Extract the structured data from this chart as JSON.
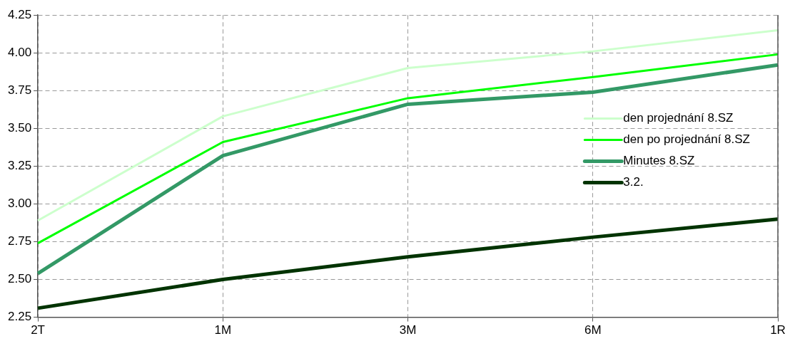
{
  "chart_data": {
    "type": "line",
    "categories": [
      "2T",
      "1M",
      "3M",
      "6M",
      "1R"
    ],
    "series": [
      {
        "name": "den projednání 8.SZ",
        "color": "#ccffcc",
        "values": [
          2.89,
          3.58,
          3.9,
          4.01,
          4.15
        ]
      },
      {
        "name": "den po projednání 8.SZ",
        "color": "#00ff00",
        "values": [
          2.74,
          3.41,
          3.7,
          3.84,
          3.99
        ]
      },
      {
        "name": "Minutes 8.SZ",
        "color": "#339966",
        "values": [
          2.54,
          3.32,
          3.66,
          3.74,
          3.92
        ]
      },
      {
        "name": "3.2.",
        "color": "#003300",
        "values": [
          2.31,
          2.5,
          2.65,
          2.78,
          2.9
        ]
      }
    ],
    "ylim": [
      2.25,
      4.25
    ],
    "yticks": [
      2.25,
      {
        "value": 2.5,
        "label": "2.50"
      },
      2.75,
      {
        "value": 3,
        "label": "3.00"
      },
      3.25,
      {
        "value": 3.5,
        "label": "3.50"
      },
      3.75,
      {
        "value": 4,
        "label": "4.00"
      },
      4.25
    ],
    "grid": true,
    "legend": "right",
    "marker": "none",
    "line_style": "solid"
  }
}
